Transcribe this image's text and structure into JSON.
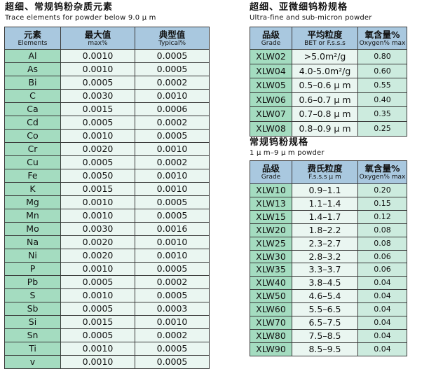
{
  "trace": {
    "title_cn": "超细、常规钨粉杂质元素",
    "title_en": "Trace elements for powder below 9.0 μ m",
    "headers": [
      {
        "cn": "元素",
        "en": "Elements"
      },
      {
        "cn": "最大值",
        "en": "max%"
      },
      {
        "cn": "典型值",
        "en": "Typical%"
      }
    ],
    "rows": [
      {
        "el": "Al",
        "max": "0.0010",
        "typ": "0.0005"
      },
      {
        "el": "As",
        "max": "0.0010",
        "typ": "0.0005"
      },
      {
        "el": "Bi",
        "max": "0.0005",
        "typ": "0.0002"
      },
      {
        "el": "C",
        "max": "0.0030",
        "typ": "0.0010"
      },
      {
        "el": "Ca",
        "max": "0.0015",
        "typ": "0.0006"
      },
      {
        "el": "Cd",
        "max": "0.0005",
        "typ": "0.0002"
      },
      {
        "el": "Co",
        "max": "0.0010",
        "typ": "0.0005"
      },
      {
        "el": "Cr",
        "max": "0.0020",
        "typ": "0.0010"
      },
      {
        "el": "Cu",
        "max": "0.0005",
        "typ": "0.0002"
      },
      {
        "el": "Fe",
        "max": "0.0050",
        "typ": "0.0010"
      },
      {
        "el": "K",
        "max": "0.0015",
        "typ": "0.0010"
      },
      {
        "el": "Mg",
        "max": "0.0010",
        "typ": "0.0005"
      },
      {
        "el": "Mn",
        "max": "0.0010",
        "typ": "0.0005"
      },
      {
        "el": "Mo",
        "max": "0.0030",
        "typ": "0.0016"
      },
      {
        "el": "Na",
        "max": "0.0020",
        "typ": "0.0010"
      },
      {
        "el": "Ni",
        "max": "0.0020",
        "typ": "0.0010"
      },
      {
        "el": "P",
        "max": "0.0010",
        "typ": "0.0005"
      },
      {
        "el": "Pb",
        "max": "0.0005",
        "typ": "0.0002"
      },
      {
        "el": "S",
        "max": "0.0010",
        "typ": "0.0005"
      },
      {
        "el": "Sb",
        "max": "0.0005",
        "typ": "0.0003"
      },
      {
        "el": "Si",
        "max": "0.0015",
        "typ": "0.0010"
      },
      {
        "el": "Sn",
        "max": "0.0005",
        "typ": "0.0002"
      },
      {
        "el": "Ti",
        "max": "0.0010",
        "typ": "0.0005"
      },
      {
        "el": "v",
        "max": "0.0010",
        "typ": "0.0005"
      }
    ]
  },
  "ultrafine": {
    "title_cn": "超细、亚微细钨粉规格",
    "title_en": "Ultra-fine and sub-micron powder",
    "headers": [
      {
        "cn": "品级",
        "en": "Grade"
      },
      {
        "cn": "平均粒度",
        "en": "BET or F.s.s.s"
      },
      {
        "cn": "氧含量%",
        "en": "Oxygen% max"
      }
    ],
    "rows": [
      {
        "grade": "XLW02",
        "size": ">5.0m²/g",
        "oxygen": "0.80"
      },
      {
        "grade": "XLW04",
        "size": "4.0-5.0m²/g",
        "oxygen": "0.60"
      },
      {
        "grade": "XLW05",
        "size": "0.5–0.6 μ m",
        "oxygen": "0.55"
      },
      {
        "grade": "XLW06",
        "size": "0.6–0.7 μ m",
        "oxygen": "0.40"
      },
      {
        "grade": "XLW07",
        "size": "0.7–0.8 μ m",
        "oxygen": "0.35"
      },
      {
        "grade": "XLW08",
        "size": "0.8–0.9 μ m",
        "oxygen": "0.25"
      }
    ]
  },
  "regular": {
    "title_cn": "常规钨粉规格",
    "title_en": "1 μ m–9 μ m powder",
    "headers": [
      {
        "cn": "品级",
        "en": "Grade"
      },
      {
        "cn": "费氏粒度",
        "en": "F.s.s.s  μ m"
      },
      {
        "cn": "氧含量%",
        "en": "Oxygen% max"
      }
    ],
    "rows": [
      {
        "grade": "XLW10",
        "size": "0.9–1.1",
        "oxygen": "0.20"
      },
      {
        "grade": "XLW13",
        "size": "1.1–1.4",
        "oxygen": "0.15"
      },
      {
        "grade": "XLW15",
        "size": "1.4–1.7",
        "oxygen": "0.12"
      },
      {
        "grade": "XLW20",
        "size": "1.8–2.2",
        "oxygen": "0.08"
      },
      {
        "grade": "XLW25",
        "size": "2.3–2.7",
        "oxygen": "0.08"
      },
      {
        "grade": "XLW30",
        "size": "2.8–3.2",
        "oxygen": "0.06"
      },
      {
        "grade": "XLW35",
        "size": "3.3–3.7",
        "oxygen": "0.06"
      },
      {
        "grade": "XLW40",
        "size": "3.8–4.5",
        "oxygen": "0.04"
      },
      {
        "grade": "XLW50",
        "size": "4.6–5.4",
        "oxygen": "0.04"
      },
      {
        "grade": "XLW60",
        "size": "5.5–6.5",
        "oxygen": "0.04"
      },
      {
        "grade": "XLW70",
        "size": "6.5–7.5",
        "oxygen": "0.04"
      },
      {
        "grade": "XLW80",
        "size": "7.5–8.5",
        "oxygen": "0.04"
      },
      {
        "grade": "XLW90",
        "size": "8.5–9.5",
        "oxygen": "0.04"
      }
    ]
  }
}
